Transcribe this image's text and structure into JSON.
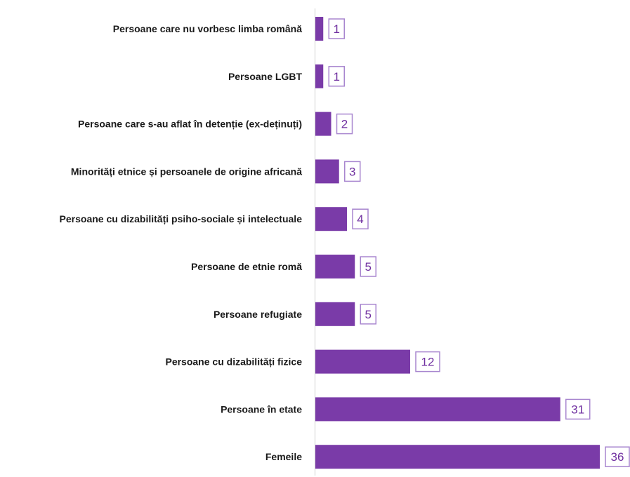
{
  "chart_data": {
    "type": "bar",
    "orientation": "horizontal",
    "title": "",
    "xlabel": "",
    "ylabel": "",
    "grid": false,
    "legend": "none",
    "xlim": [
      0,
      36
    ],
    "bar_color": "#7a3ba8",
    "label_color": "#7030a0",
    "label_border_color": "#a886cf",
    "categories": [
      "Persoane care nu vorbesc limba română",
      "Persoane LGBT",
      "Persoane care s-au aflat în detenție (ex-deținuți)",
      "Minorități etnice și persoanele de origine africană",
      "Persoane cu dizabilități psiho-sociale și intelectuale",
      "Persoane de etnie romă",
      "Persoane refugiate",
      "Persoane cu dizabilități fizice",
      "Persoane în etate",
      "Femeile"
    ],
    "values": [
      1,
      1,
      2,
      3,
      4,
      5,
      5,
      12,
      31,
      36
    ]
  }
}
